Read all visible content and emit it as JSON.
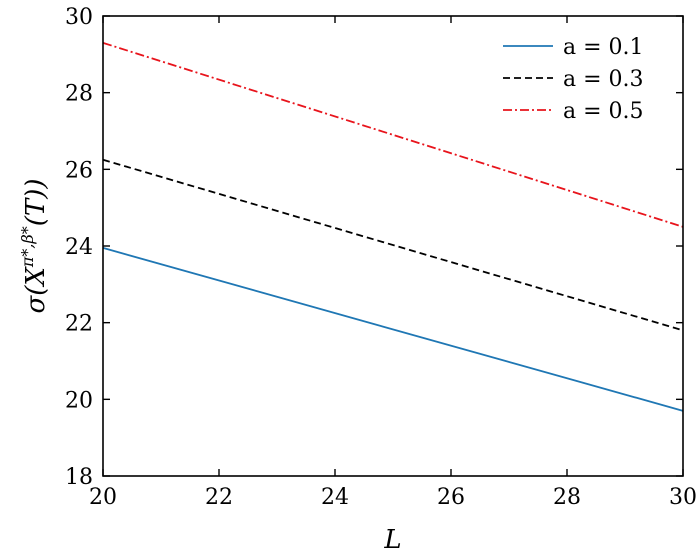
{
  "chart_data": {
    "type": "line",
    "title": "",
    "xlabel": "L",
    "ylabel": "σ(X^{π*,β*}(T))",
    "xlim": [
      20,
      30
    ],
    "ylim": [
      18,
      30
    ],
    "xticks": [
      20,
      22,
      24,
      26,
      28,
      30
    ],
    "yticks": [
      18,
      20,
      22,
      24,
      26,
      28,
      30
    ],
    "grid": false,
    "legend_position": "top-right",
    "series": [
      {
        "name": "a = 0.1",
        "x": [
          20,
          30
        ],
        "y": [
          23.95,
          19.7
        ],
        "color": "#1f77b4",
        "dash": "solid"
      },
      {
        "name": "a = 0.3",
        "x": [
          20,
          30
        ],
        "y": [
          26.25,
          21.8
        ],
        "color": "#000000",
        "dash": "dashed"
      },
      {
        "name": "a = 0.5",
        "x": [
          20,
          30
        ],
        "y": [
          29.3,
          24.5
        ],
        "color": "#e8141c",
        "dash": "dashdot"
      }
    ]
  }
}
